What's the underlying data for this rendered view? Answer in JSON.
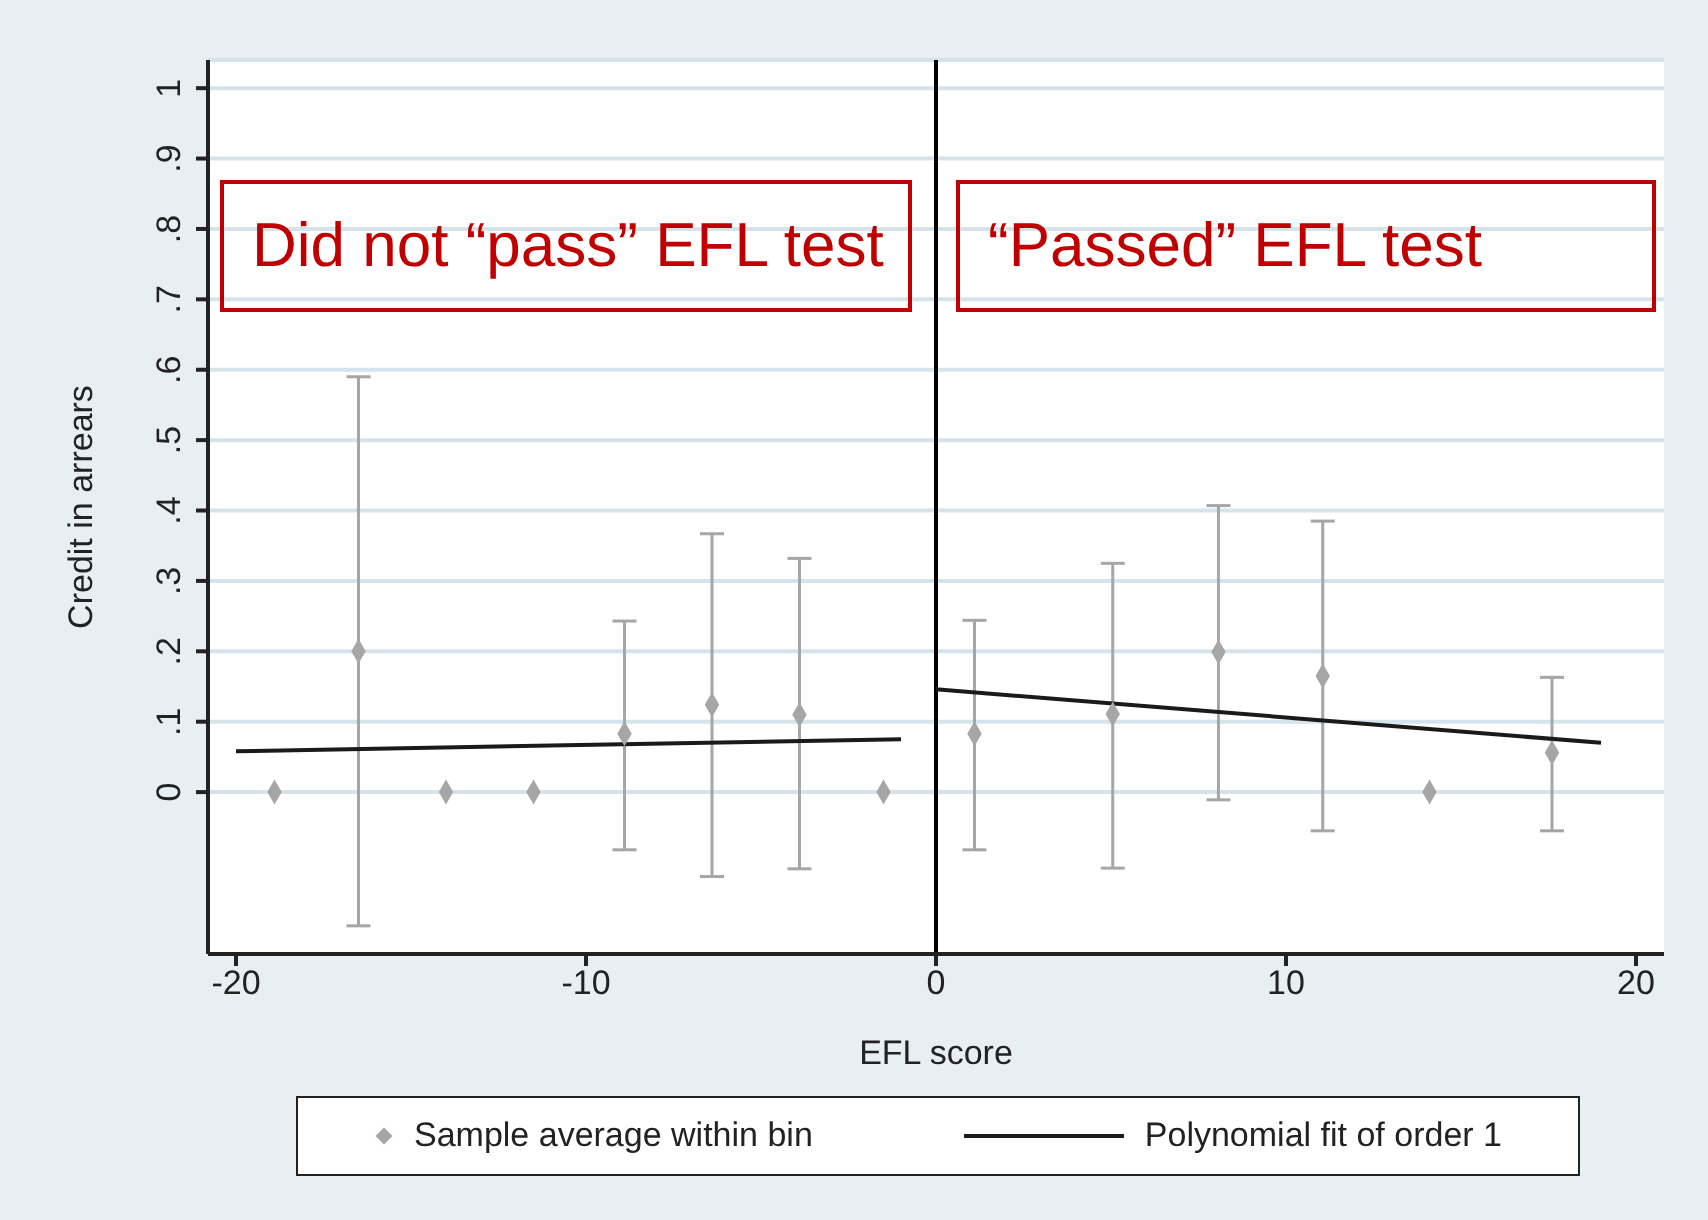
{
  "chart_data": {
    "type": "scatter",
    "xlabel": "EFL score",
    "ylabel": "Credit in arrears",
    "xlim": [
      -20.8,
      20.8
    ],
    "xticks": [
      -20,
      -10,
      0,
      10,
      20
    ],
    "ylim": [
      -0.23,
      1.04
    ],
    "yticks": [
      0,
      {
        "value": 0.1,
        "label": ".1"
      },
      {
        "value": 0.2,
        "label": ".2"
      },
      {
        "value": 0.3,
        "label": ".3"
      },
      {
        "value": 0.4,
        "label": ".4"
      },
      {
        "value": 0.5,
        "label": ".5"
      },
      {
        "value": 0.6,
        "label": ".6"
      },
      {
        "value": 0.7,
        "label": ".7"
      },
      {
        "value": 0.8,
        "label": ".8"
      },
      {
        "value": 0.9,
        "label": ".9"
      },
      1
    ],
    "grid": "y",
    "legend": "bottom",
    "series": [
      {
        "name": "Sample average within bin",
        "marker": "diamond",
        "color": "#a6a6a6",
        "x": [
          -18.9,
          -16.5,
          -14,
          -11.5,
          -8.9,
          -6.4,
          -3.9,
          -1.5,
          1.1,
          5.05,
          8.07,
          11.05,
          14.1,
          17.6
        ],
        "values": [
          0,
          0.2,
          0,
          0,
          0.083,
          0.124,
          0.11,
          0,
          0.083,
          0.111,
          0.199,
          0.165,
          0,
          0.056
        ],
        "errors": [
          null,
          [
            -0.19,
            0.59
          ],
          null,
          null,
          [
            -0.082,
            0.243
          ],
          [
            -0.12,
            0.367
          ],
          [
            -0.109,
            0.332
          ],
          null,
          [
            -0.082,
            0.244
          ],
          [
            -0.108,
            0.325
          ],
          [
            -0.011,
            0.407
          ],
          [
            -0.055,
            0.385
          ],
          null,
          [
            -0.055,
            0.163
          ]
        ]
      },
      {
        "name": "Polynomial fit of order 1",
        "type": "line",
        "color": "#1a1a1a",
        "x": [
          -20,
          -1
        ],
        "values": [
          0.058,
          0.075
        ]
      },
      {
        "type": "line",
        "color": "#1a1a1a",
        "x": [
          0,
          19
        ],
        "values": [
          0.146,
          0.07
        ]
      }
    ],
    "ref_lines": [
      {
        "axis": "x",
        "value": 0,
        "color": "#000000"
      }
    ],
    "annotations": [
      "Did not “pass” EFL test",
      "“Passed” EFL test"
    ]
  }
}
